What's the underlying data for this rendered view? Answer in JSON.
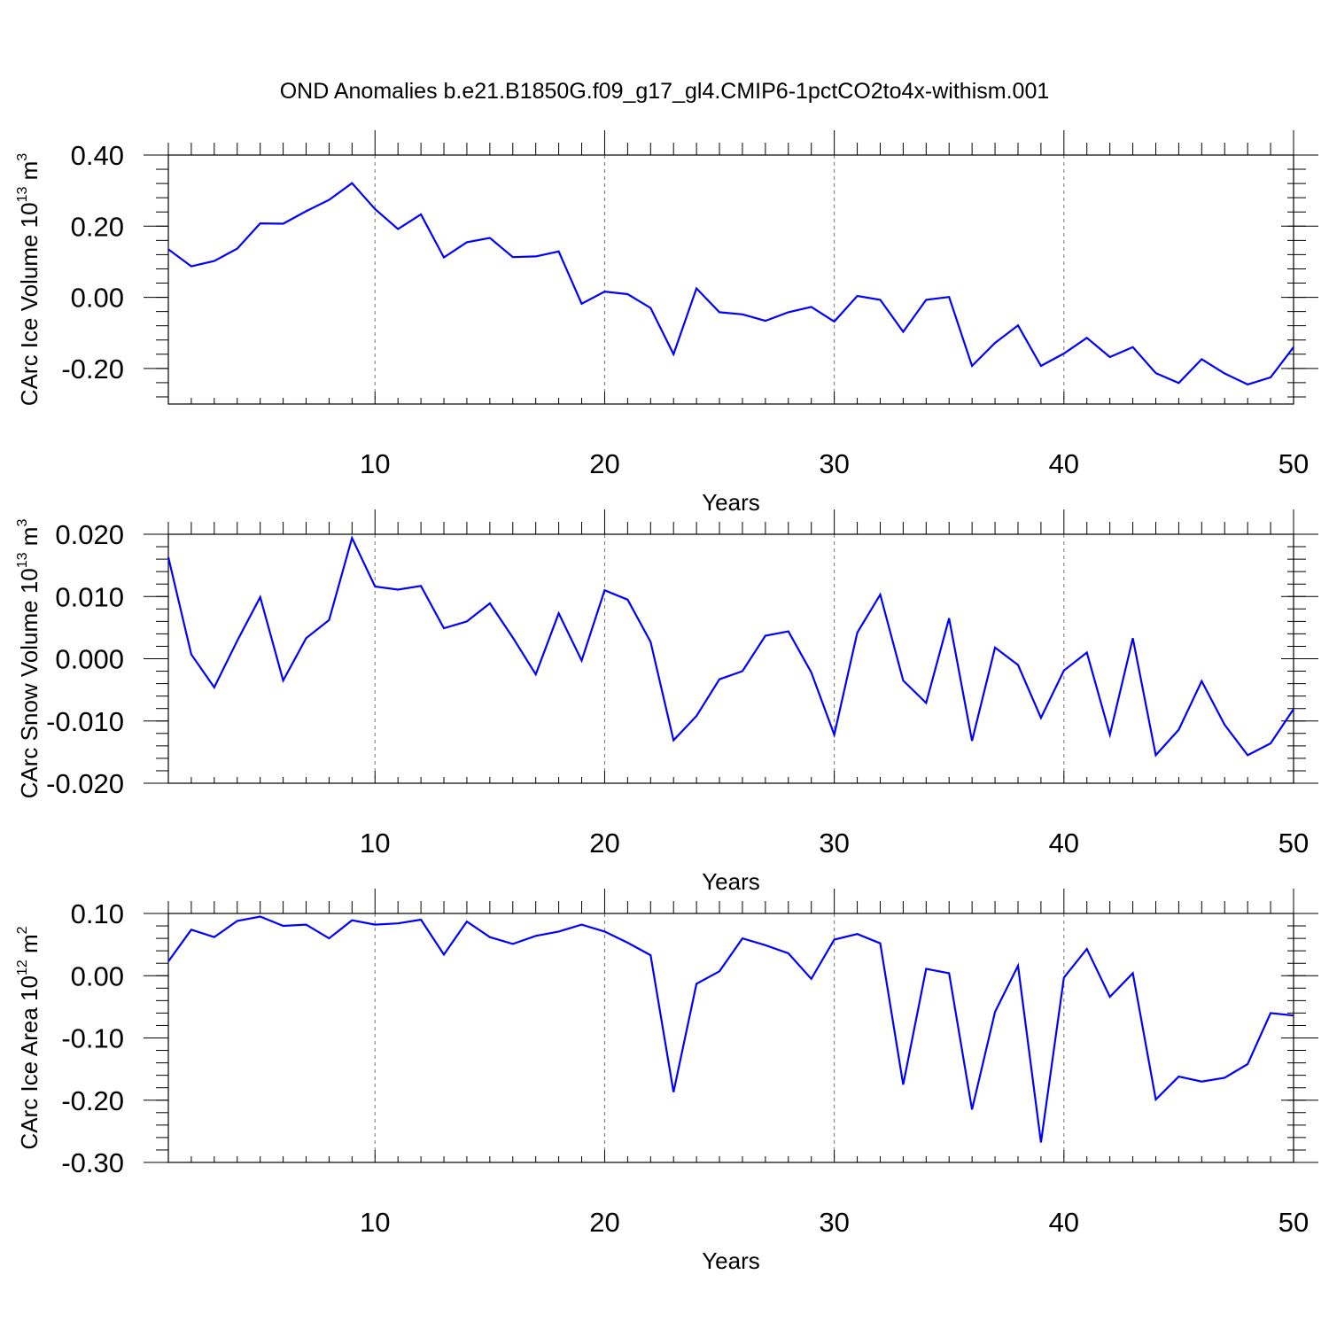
{
  "title": "OND Anomalies b.e21.B1850G.f09_g17_gl4.CMIP6-1pctCO2to4x-withism.001",
  "chart_data": [
    {
      "type": "line",
      "ylabel": {
        "base": "CArc Ice Volume 10",
        "exp": "13",
        "unit": " m",
        "unit_exp": "3"
      },
      "xlabel": "Years",
      "xlim": [
        1,
        50
      ],
      "ylim": [
        -0.3,
        0.4
      ],
      "yticks": [
        {
          "value": 0.4,
          "label": "0.40"
        },
        {
          "value": 0.2,
          "label": "0.20"
        },
        {
          "value": 0.0,
          "label": "0.00"
        },
        {
          "value": -0.2,
          "label": "-0.20"
        }
      ],
      "yminor_step": 0.04,
      "xticks": [
        {
          "value": 10,
          "label": "10"
        },
        {
          "value": 20,
          "label": "20"
        },
        {
          "value": 30,
          "label": "30"
        },
        {
          "value": 40,
          "label": "40"
        },
        {
          "value": 50,
          "label": "50"
        }
      ],
      "grid_x": [
        10,
        20,
        30,
        40
      ],
      "color": "#0000ff",
      "x": [
        1,
        2,
        3,
        4,
        5,
        6,
        7,
        8,
        9,
        10,
        11,
        12,
        13,
        14,
        15,
        16,
        17,
        18,
        19,
        20,
        21,
        22,
        23,
        24,
        25,
        26,
        27,
        28,
        29,
        30,
        31,
        32,
        33,
        34,
        35,
        36,
        37,
        38,
        39,
        40,
        41,
        42,
        43,
        44,
        45,
        46,
        47,
        48,
        49,
        50
      ],
      "values": [
        0.135,
        0.087,
        0.102,
        0.137,
        0.208,
        0.207,
        0.242,
        0.274,
        0.321,
        0.248,
        0.192,
        0.233,
        0.112,
        0.155,
        0.167,
        0.113,
        0.115,
        0.129,
        -0.018,
        0.016,
        0.009,
        -0.03,
        -0.16,
        0.025,
        -0.042,
        -0.048,
        -0.066,
        -0.042,
        -0.027,
        -0.068,
        0.004,
        -0.007,
        -0.097,
        -0.007,
        0.001,
        -0.193,
        -0.128,
        -0.079,
        -0.193,
        -0.158,
        -0.114,
        -0.168,
        -0.14,
        -0.213,
        -0.241,
        -0.174,
        -0.214,
        -0.245,
        -0.225,
        -0.14
      ]
    },
    {
      "type": "line",
      "ylabel": {
        "base": "CArc Snow Volume 10",
        "exp": "13",
        "unit": " m",
        "unit_exp": "3"
      },
      "xlabel": "Years",
      "xlim": [
        1,
        50
      ],
      "ylim": [
        -0.02,
        0.02
      ],
      "yticks": [
        {
          "value": 0.02,
          "label": "0.020"
        },
        {
          "value": 0.01,
          "label": "0.010"
        },
        {
          "value": 0.0,
          "label": "0.000"
        },
        {
          "value": -0.01,
          "label": "-0.010"
        },
        {
          "value": -0.02,
          "label": "-0.020"
        }
      ],
      "yminor_step": 0.002,
      "xticks": [
        {
          "value": 10,
          "label": "10"
        },
        {
          "value": 20,
          "label": "20"
        },
        {
          "value": 30,
          "label": "30"
        },
        {
          "value": 40,
          "label": "40"
        },
        {
          "value": 50,
          "label": "50"
        }
      ],
      "grid_x": [
        10,
        20,
        30,
        40
      ],
      "color": "#0000ff",
      "x": [
        1,
        2,
        3,
        4,
        5,
        6,
        7,
        8,
        9,
        10,
        11,
        12,
        13,
        14,
        15,
        16,
        17,
        18,
        19,
        20,
        21,
        22,
        23,
        24,
        25,
        26,
        27,
        28,
        29,
        30,
        31,
        32,
        33,
        34,
        35,
        36,
        37,
        38,
        39,
        40,
        41,
        42,
        43,
        44,
        45,
        46,
        47,
        48,
        49,
        50
      ],
      "values": [
        0.0163,
        0.0007,
        -0.0046,
        0.0029,
        0.0099,
        -0.0035,
        0.0033,
        0.0062,
        0.0194,
        0.0116,
        0.0111,
        0.0117,
        0.0049,
        0.006,
        0.0089,
        0.0034,
        -0.0025,
        0.0073,
        -0.0003,
        0.011,
        0.0095,
        0.0027,
        -0.0131,
        -0.0092,
        -0.0033,
        -0.002,
        0.0037,
        0.0044,
        -0.0022,
        -0.0122,
        0.0042,
        0.0103,
        -0.0035,
        -0.0071,
        0.0065,
        -0.0132,
        0.0018,
        -0.001,
        -0.0095,
        -0.0019,
        0.001,
        -0.0122,
        0.0033,
        -0.0155,
        -0.0114,
        -0.0036,
        -0.0106,
        -0.0155,
        -0.0136,
        -0.0081
      ]
    },
    {
      "type": "line",
      "ylabel": {
        "base": "CArc Ice Area 10",
        "exp": "12",
        "unit": " m",
        "unit_exp": "2"
      },
      "xlabel": "Years",
      "xlim": [
        1,
        50
      ],
      "ylim": [
        -0.3,
        0.1
      ],
      "yticks": [
        {
          "value": 0.1,
          "label": "0.10"
        },
        {
          "value": 0.0,
          "label": "0.00"
        },
        {
          "value": -0.1,
          "label": "-0.10"
        },
        {
          "value": -0.2,
          "label": "-0.20"
        },
        {
          "value": -0.3,
          "label": "-0.30"
        }
      ],
      "yminor_step": 0.02,
      "xticks": [
        {
          "value": 10,
          "label": "10"
        },
        {
          "value": 20,
          "label": "20"
        },
        {
          "value": 30,
          "label": "30"
        },
        {
          "value": 40,
          "label": "40"
        },
        {
          "value": 50,
          "label": "50"
        }
      ],
      "grid_x": [
        10,
        20,
        30,
        40
      ],
      "color": "#0000ff",
      "x": [
        1,
        2,
        3,
        4,
        5,
        6,
        7,
        8,
        9,
        10,
        11,
        12,
        13,
        14,
        15,
        16,
        17,
        18,
        19,
        20,
        21,
        22,
        23,
        24,
        25,
        26,
        27,
        28,
        29,
        30,
        31,
        32,
        33,
        34,
        35,
        36,
        37,
        38,
        39,
        40,
        41,
        42,
        43,
        44,
        45,
        46,
        47,
        48,
        49,
        50
      ],
      "values": [
        0.023,
        0.074,
        0.062,
        0.088,
        0.095,
        0.08,
        0.082,
        0.06,
        0.089,
        0.082,
        0.084,
        0.09,
        0.034,
        0.087,
        0.062,
        0.051,
        0.064,
        0.071,
        0.082,
        0.071,
        0.053,
        0.033,
        -0.187,
        -0.013,
        0.007,
        0.06,
        0.049,
        0.036,
        -0.005,
        0.058,
        0.067,
        0.052,
        -0.175,
        0.011,
        0.004,
        -0.215,
        -0.058,
        0.016,
        -0.268,
        -0.003,
        0.043,
        -0.034,
        0.004,
        -0.199,
        -0.162,
        -0.17,
        -0.164,
        -0.142,
        -0.06,
        -0.064
      ]
    }
  ]
}
